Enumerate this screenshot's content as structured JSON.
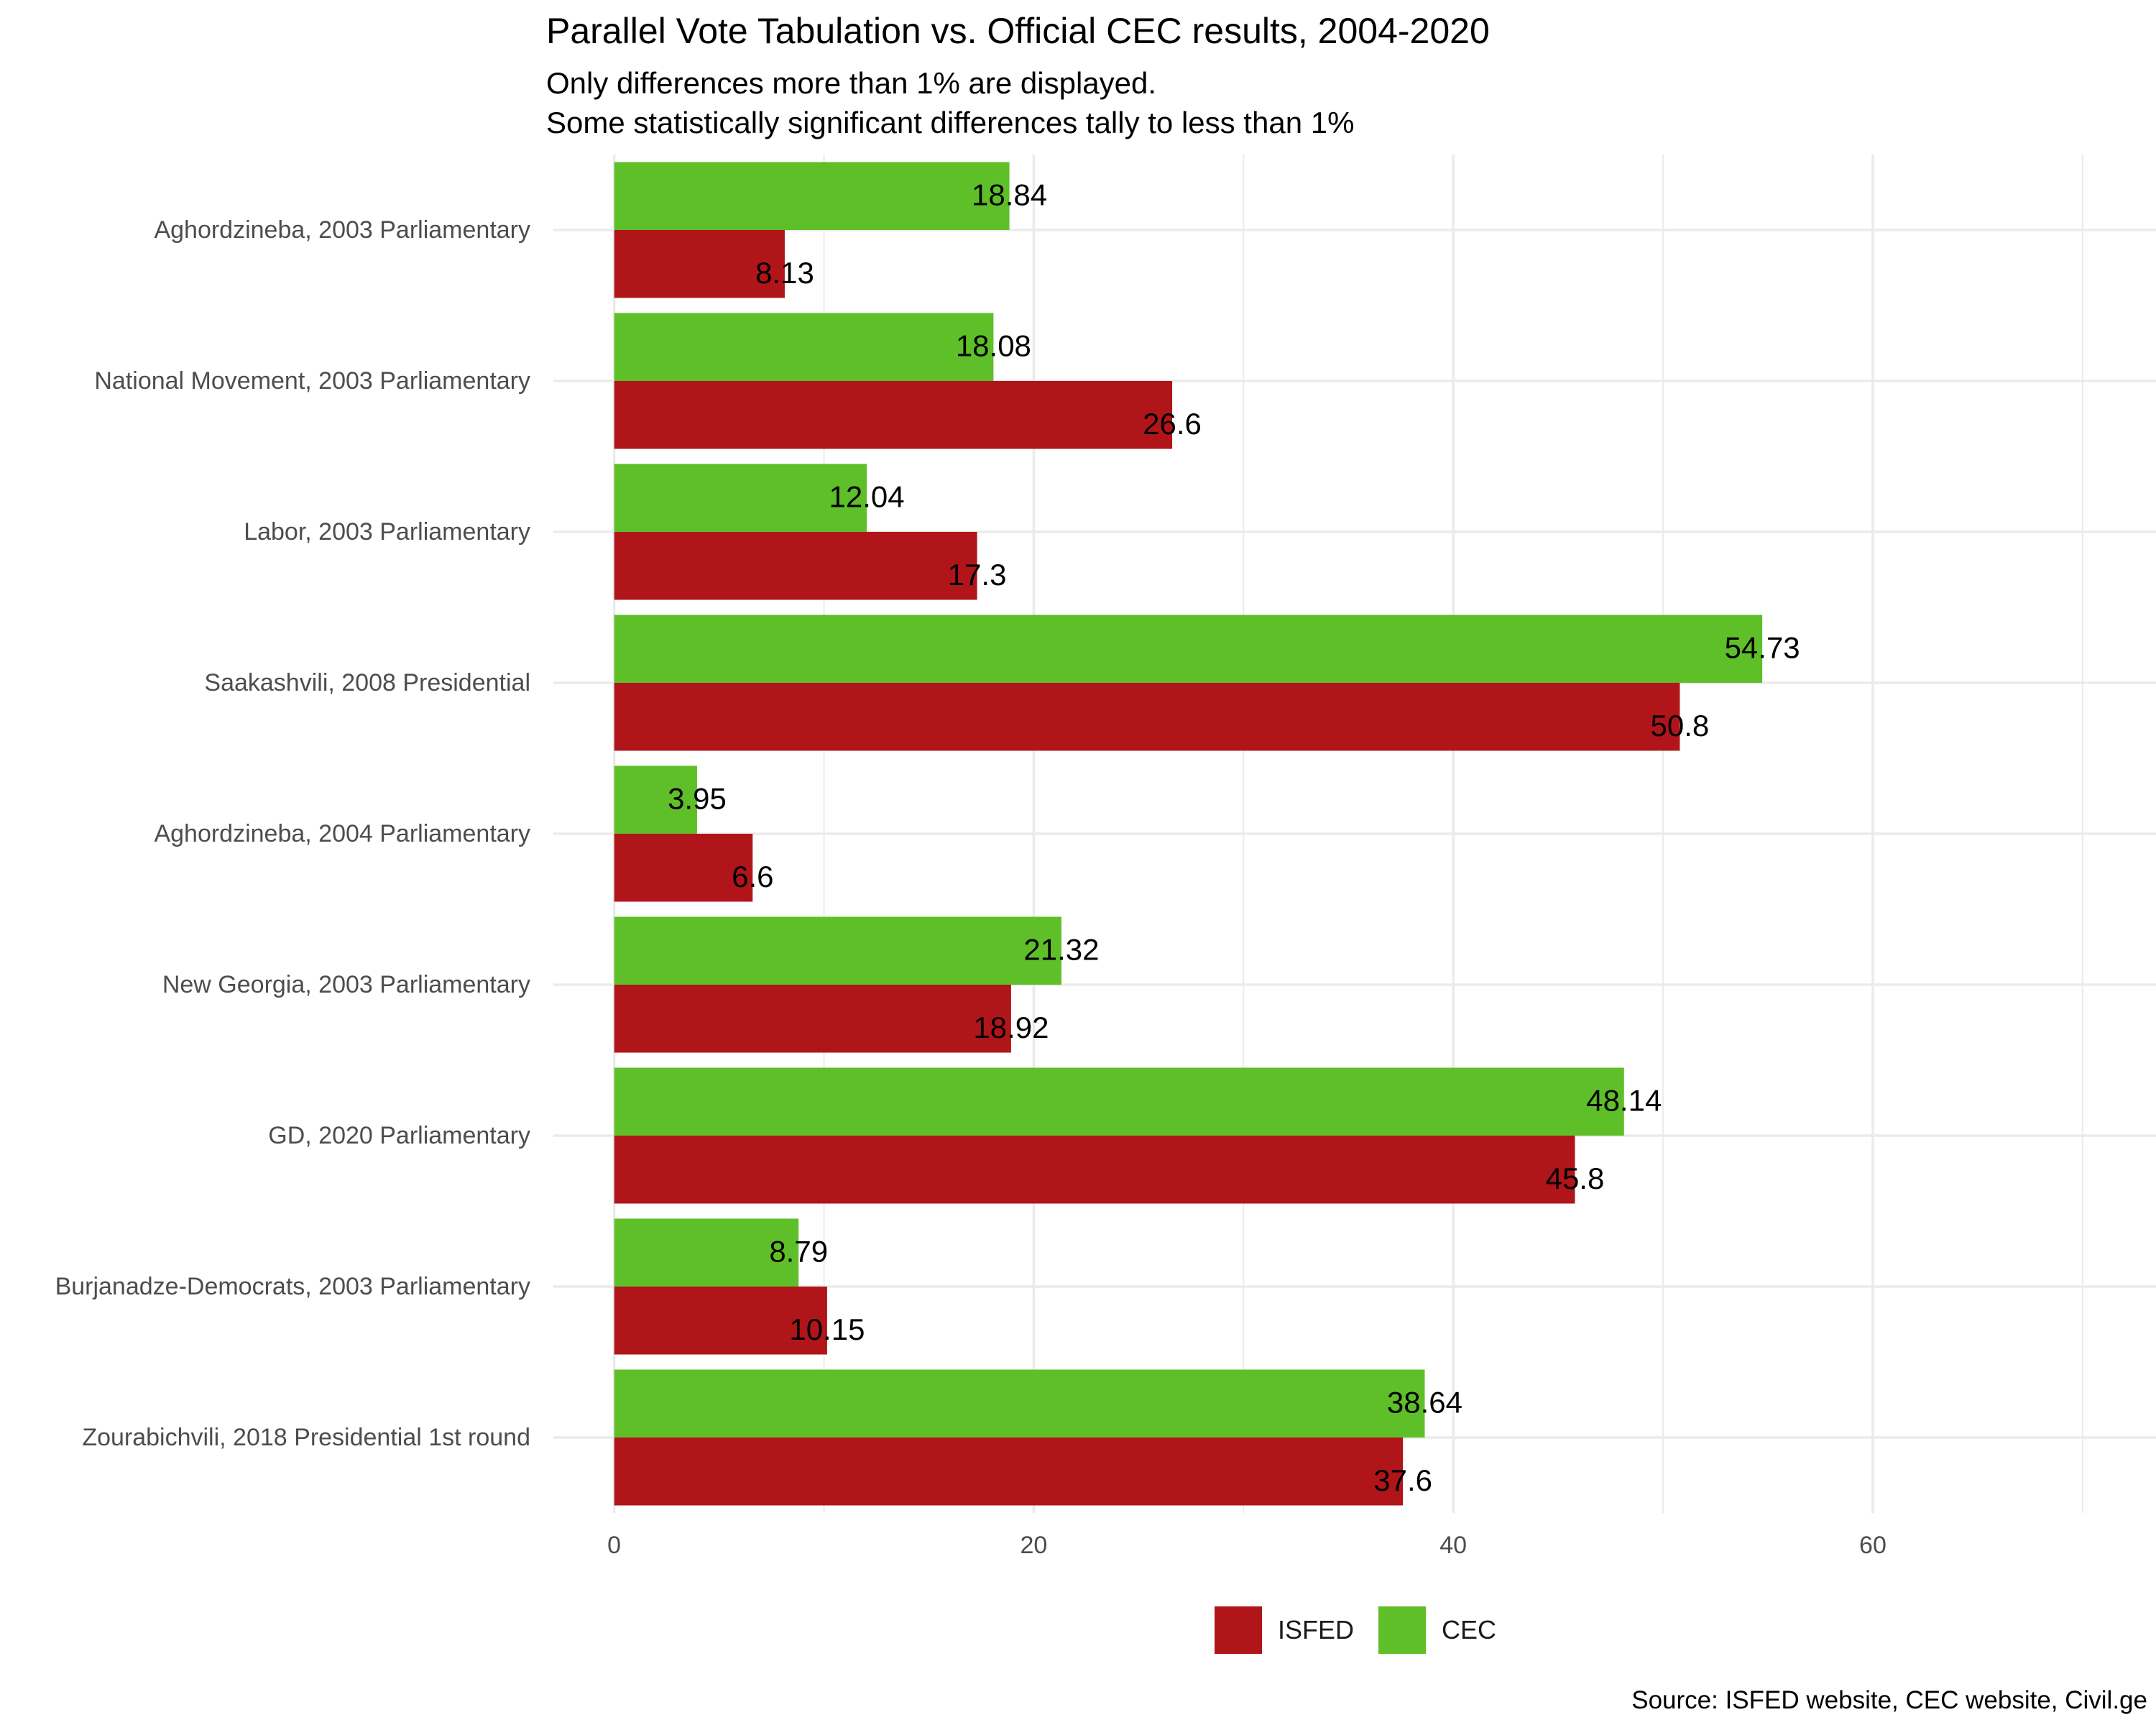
{
  "title": "Parallel Vote Tabulation vs. Official CEC results, 2004-2020",
  "subtitle": [
    "Only differences more than 1% are displayed.",
    "Some statistically significant differences tally to less than 1%"
  ],
  "caption": "Source: ISFED website, CEC website, Civil.ge",
  "legend": {
    "items": [
      {
        "label": "ISFED",
        "color": "#B0151A"
      },
      {
        "label": "CEC",
        "color": "#5FBF28"
      }
    ]
  },
  "chart_data": {
    "type": "bar",
    "orientation": "horizontal",
    "categories": [
      "Aghordzineba, 2003 Parliamentary",
      "National Movement, 2003 Parliamentary",
      "Labor, 2003 Parliamentary",
      "Saakashvili, 2008 Presidential",
      "Aghordzineba, 2004 Parliamentary",
      "New Georgia, 2003 Parliamentary",
      "GD, 2020 Parliamentary",
      "Burjanadze-Democrats, 2003 Parliamentary",
      "Zourabichvili, 2018 Presidential 1st round"
    ],
    "series": [
      {
        "name": "ISFED",
        "color": "#B0151A",
        "values": [
          8.13,
          26.6,
          17.3,
          50.8,
          6.6,
          18.92,
          45.8,
          10.15,
          37.6
        ]
      },
      {
        "name": "CEC",
        "color": "#5FBF28",
        "values": [
          18.84,
          18.08,
          12.04,
          54.73,
          3.95,
          21.32,
          48.14,
          8.79,
          38.64
        ]
      }
    ],
    "value_labels": {
      "ISFED": [
        "8.13",
        "26.6",
        "17.3",
        "50.8",
        "6.6",
        "18.92",
        "45.8",
        "10.15",
        "37.6"
      ],
      "CEC": [
        "18.84",
        "18.08",
        "12.04",
        "54.73",
        "3.95",
        "21.32",
        "48.14",
        "8.79",
        "38.64"
      ]
    },
    "xlim": [
      -2.9,
      73.5
    ],
    "x_ticks": [
      0,
      20,
      40,
      60
    ],
    "x_tick_labels": [
      "0",
      "20",
      "40",
      "60"
    ],
    "grid": true,
    "legend_position": "bottom"
  }
}
